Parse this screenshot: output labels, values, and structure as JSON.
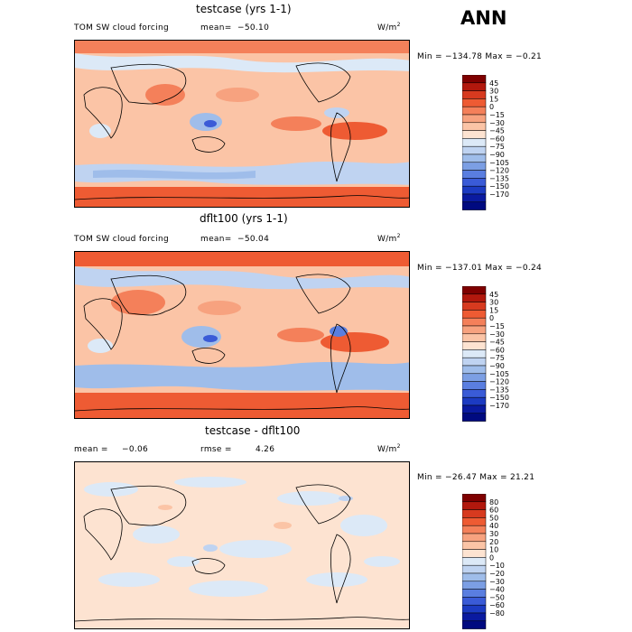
{
  "header": {
    "season": "ANN"
  },
  "panels": [
    {
      "title": "testcase (yrs 1-1)",
      "variable": "TOM SW cloud forcing",
      "mean_label": "mean=",
      "mean_value": "−50.10",
      "units": "W/m",
      "units_exp": "2",
      "minmax": "Min = −134.78 Max =  −0.21",
      "colorbar": {
        "colors": [
          "#7f0000",
          "#b2180d",
          "#d73a1f",
          "#ee5b33",
          "#f4805a",
          "#f7a27f",
          "#fbc4a6",
          "#fde3d1",
          "#dce9f7",
          "#bfd3f1",
          "#9fbdea",
          "#7c9fe4",
          "#5a7ee0",
          "#3a5bd7",
          "#1c3bc2",
          "#0a1aa0",
          "#000a80"
        ],
        "labels": [
          "45",
          "30",
          "15",
          "0",
          "−15",
          "−30",
          "−45",
          "−60",
          "−75",
          "−90",
          "−105",
          "−120",
          "−135",
          "−150",
          "−170"
        ]
      }
    },
    {
      "title": "dflt100 (yrs 1-1)",
      "variable": "TOM SW cloud forcing",
      "mean_label": "mean=",
      "mean_value": "−50.04",
      "units": "W/m",
      "units_exp": "2",
      "minmax": "Min = −137.01 Max =  −0.24",
      "colorbar": {
        "colors": [
          "#7f0000",
          "#b2180d",
          "#d73a1f",
          "#ee5b33",
          "#f4805a",
          "#f7a27f",
          "#fbc4a6",
          "#fde3d1",
          "#dce9f7",
          "#bfd3f1",
          "#9fbdea",
          "#7c9fe4",
          "#5a7ee0",
          "#3a5bd7",
          "#1c3bc2",
          "#0a1aa0",
          "#000a80"
        ],
        "labels": [
          "45",
          "30",
          "15",
          "0",
          "−15",
          "−30",
          "−45",
          "−60",
          "−75",
          "−90",
          "−105",
          "−120",
          "−135",
          "−150",
          "−170"
        ]
      }
    },
    {
      "title": "testcase - dflt100",
      "mean_label": "mean =",
      "mean_value": "−0.06",
      "rmse_label": "rmse =",
      "rmse_value": "4.26",
      "units": "W/m",
      "units_exp": "2",
      "minmax": "Min = −26.47 Max =  21.21",
      "colorbar": {
        "colors": [
          "#7f0000",
          "#b2180d",
          "#d73a1f",
          "#ee5b33",
          "#f4805a",
          "#f7a27f",
          "#fbc4a6",
          "#fde3d1",
          "#dce9f7",
          "#bfd3f1",
          "#9fbdea",
          "#7c9fe4",
          "#5a7ee0",
          "#3a5bd7",
          "#1c3bc2",
          "#0a1aa0",
          "#000a80"
        ],
        "labels": [
          "80",
          "60",
          "50",
          "40",
          "30",
          "20",
          "10",
          "0",
          "−10",
          "−20",
          "−30",
          "−40",
          "−50",
          "−60",
          "−80"
        ]
      }
    }
  ]
}
